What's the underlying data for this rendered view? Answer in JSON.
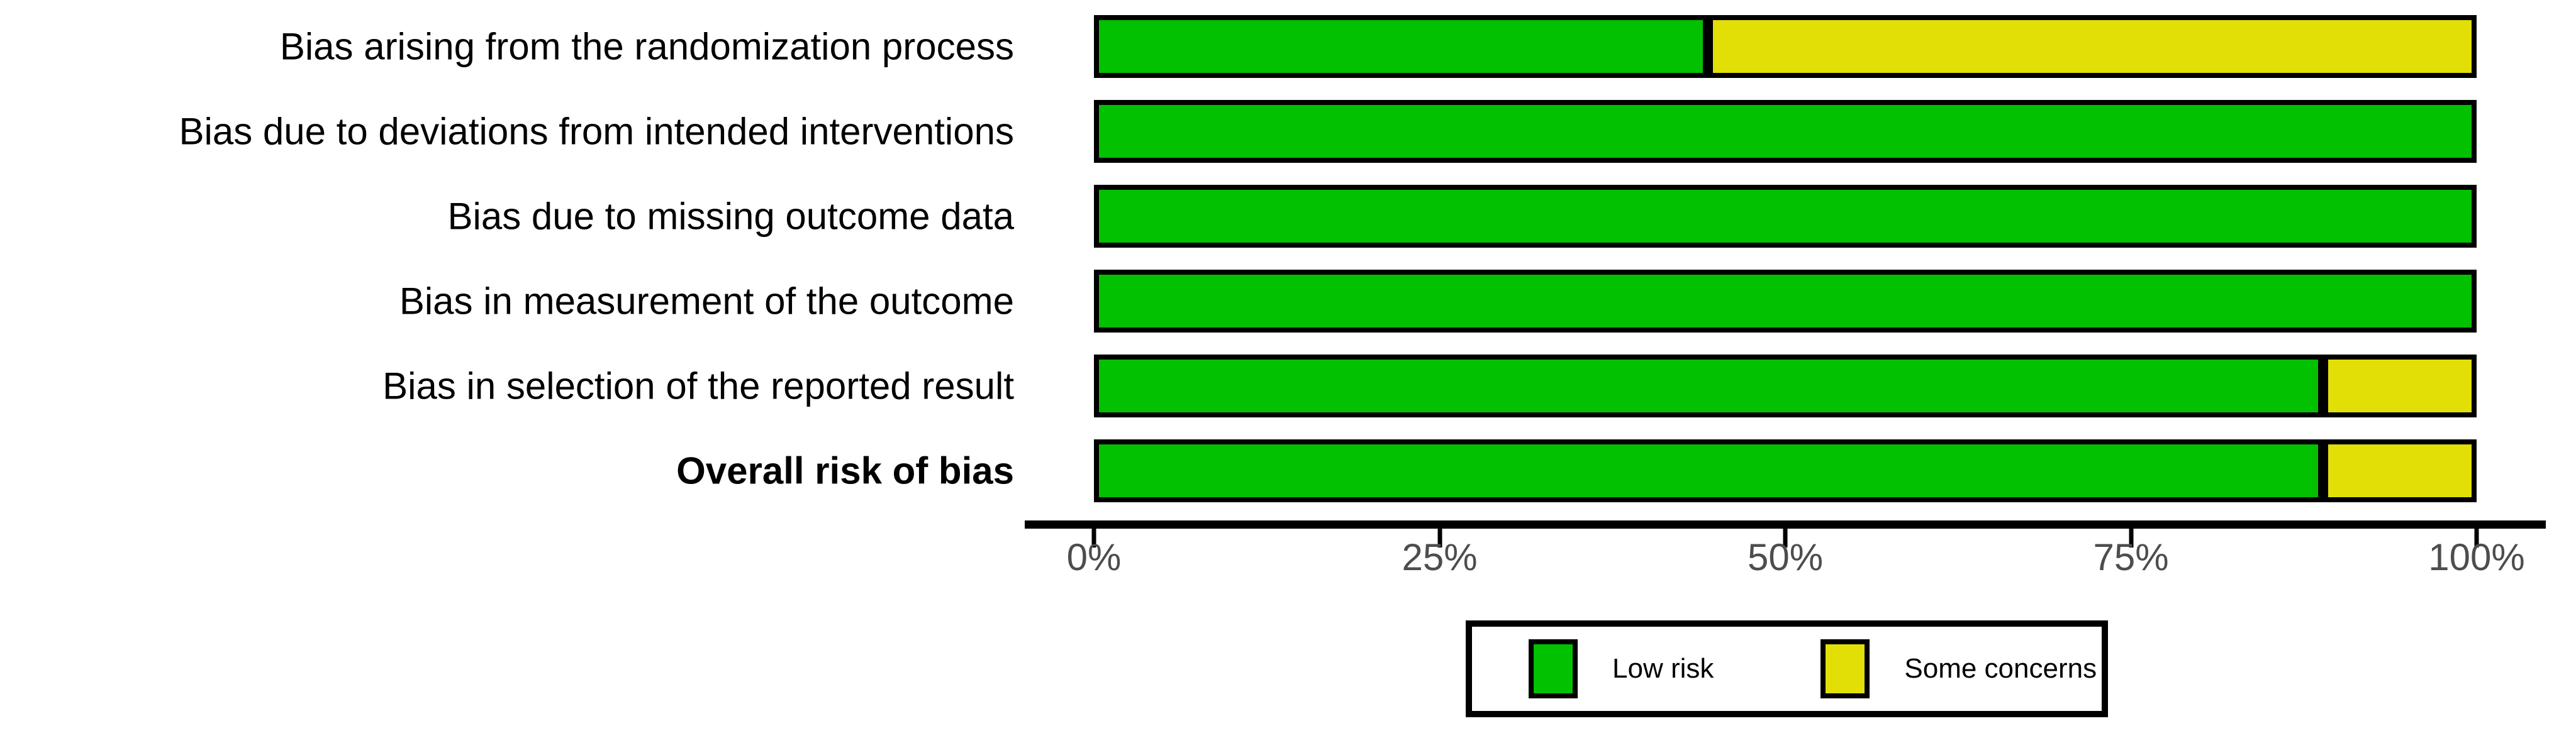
{
  "figure": {
    "background": "#ffffff"
  },
  "chart_data": {
    "type": "bar",
    "orientation": "horizontal",
    "stacked": true,
    "units": "percent",
    "title": "",
    "xlabel": "",
    "ylabel": "",
    "grid": false,
    "legend_position": "bottom",
    "xlim": [
      0,
      100
    ],
    "x_ticks": [
      "0%",
      "25%",
      "50%",
      "75%",
      "100%"
    ],
    "x_tick_values": [
      0,
      25,
      50,
      75,
      100
    ],
    "categories": [
      "Bias arising from the randomization process",
      "Bias due to deviations from intended interventions",
      "Bias due to missing outcome data",
      "Bias in measurement of the outcome",
      "Bias in selection of the reported result",
      "Overall risk of bias"
    ],
    "bold_category": "Overall risk of bias",
    "series": [
      {
        "name": "Low risk",
        "color": "#02C100",
        "values": [
          44.4,
          100,
          100,
          100,
          88.9,
          88.9
        ]
      },
      {
        "name": "Some concerns",
        "color": "#E2DF07",
        "values": [
          55.6,
          0,
          0,
          0,
          11.1,
          11.1
        ]
      }
    ],
    "bar_border_color": "#000000",
    "axis_color": "#000000",
    "tick_label_color": "#4d4d4d"
  }
}
